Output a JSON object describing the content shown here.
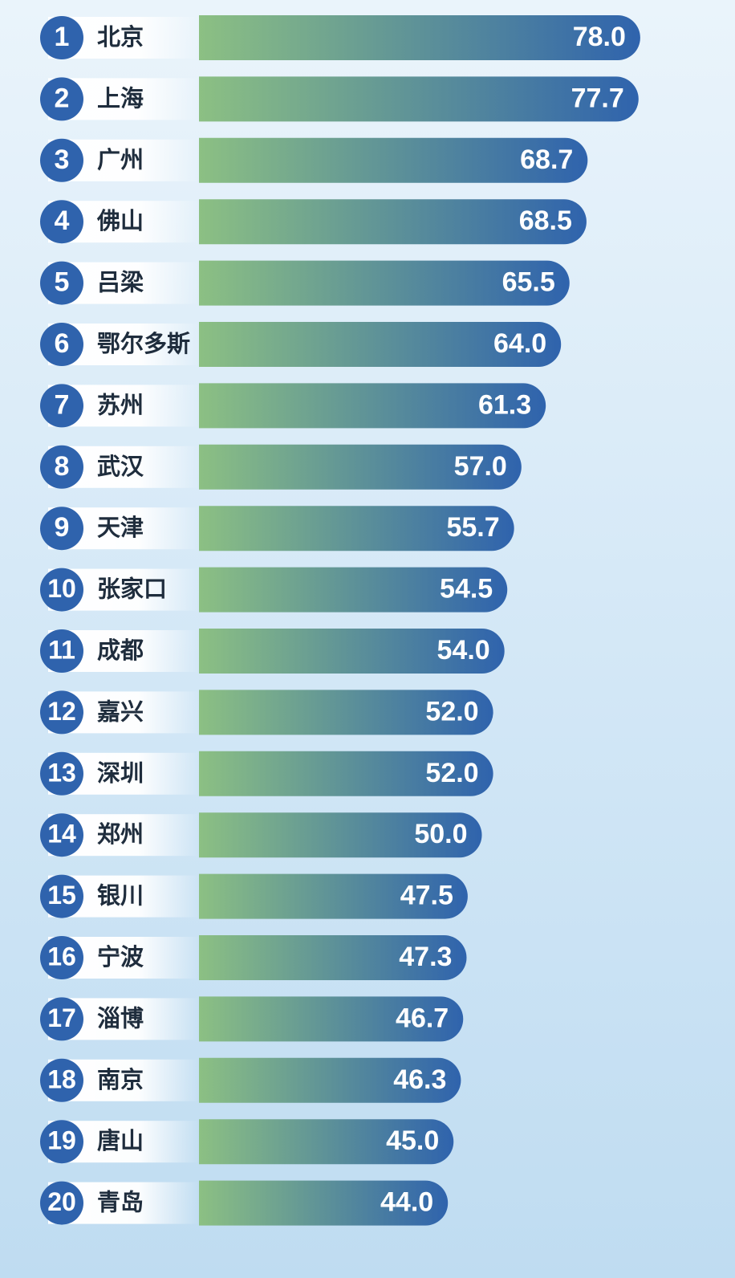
{
  "chart_data": {
    "type": "bar",
    "orientation": "horizontal",
    "ranks": [
      "1",
      "2",
      "3",
      "4",
      "5",
      "6",
      "7",
      "8",
      "9",
      "10",
      "11",
      "12",
      "13",
      "14",
      "15",
      "16",
      "17",
      "18",
      "19",
      "20"
    ],
    "categories": [
      "北京",
      "上海",
      "广州",
      "佛山",
      "吕梁",
      "鄂尔多斯",
      "苏州",
      "武汉",
      "天津",
      "张家口",
      "成都",
      "嘉兴",
      "深圳",
      "郑州",
      "银川",
      "宁波",
      "淄博",
      "南京",
      "唐山",
      "青岛"
    ],
    "values": [
      78.0,
      77.7,
      68.7,
      68.5,
      65.5,
      64.0,
      61.3,
      57.0,
      55.7,
      54.5,
      54.0,
      52.0,
      52.0,
      50.0,
      47.5,
      47.3,
      46.7,
      46.3,
      45.0,
      44.0
    ],
    "value_labels": [
      "78.0",
      "77.7",
      "68.7",
      "68.5",
      "65.5",
      "64.0",
      "61.3",
      "57.0",
      "55.7",
      "54.5",
      "54.0",
      "52.0",
      "52.0",
      "50.0",
      "47.5",
      "47.3",
      "46.7",
      "46.3",
      "45.0",
      "44.0"
    ],
    "colors": {
      "bar_start": "#8cc083",
      "bar_end": "#2f63ad",
      "rank_circle": "#2f63ad",
      "label_bg": "#ffffff",
      "label_text": "#1f2d3d",
      "value_text": "#ffffff"
    }
  }
}
